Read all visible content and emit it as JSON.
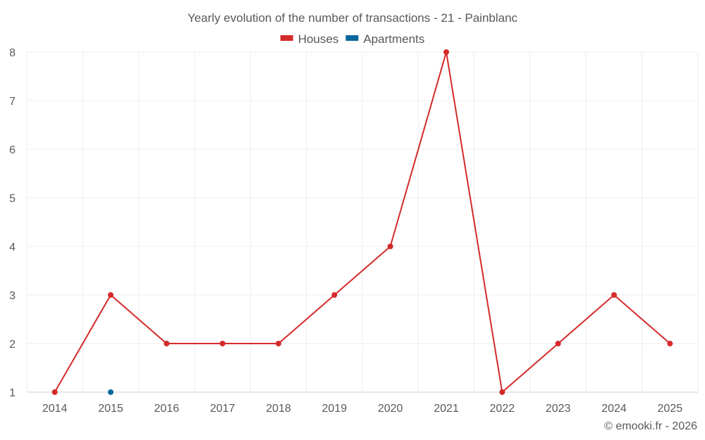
{
  "chart_data": {
    "type": "line",
    "title": "Yearly evolution of the number of transactions - 21 - Painblanc",
    "x": [
      "2014",
      "2015",
      "2016",
      "2017",
      "2018",
      "2019",
      "2020",
      "2021",
      "2022",
      "2023",
      "2024",
      "2025"
    ],
    "series": [
      {
        "name": "Houses",
        "color": "#d42a2a",
        "values": [
          1,
          3,
          2,
          2,
          2,
          3,
          4,
          8,
          1,
          2,
          3,
          2
        ]
      },
      {
        "name": "Apartments",
        "color": "#08679c",
        "values": [
          null,
          1,
          null,
          null,
          null,
          null,
          null,
          null,
          null,
          null,
          null,
          null
        ]
      }
    ],
    "ylim": [
      1,
      8
    ],
    "yticks": [
      "1",
      "2",
      "3",
      "4",
      "5",
      "6",
      "7",
      "8"
    ],
    "grid": true,
    "legend_position": "top-center"
  },
  "credit": "© emooki.fr - 2026"
}
